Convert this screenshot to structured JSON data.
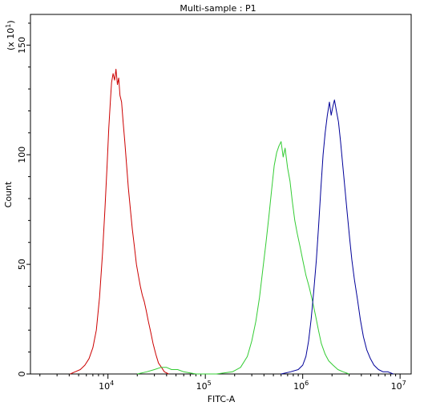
{
  "chart_data": {
    "type": "line",
    "title": "Multi-sample : P1",
    "xlabel": "FITC-A",
    "ylabel": "Count",
    "y_multiplier_label": "(x 10",
    "y_multiplier_exp": "1",
    "y_multiplier_close": ")",
    "x_scale": "log",
    "xlim": [
      1600,
      13000000
    ],
    "ylim": [
      0,
      164
    ],
    "x_major_ticks": [
      {
        "value": 10000,
        "base": "10",
        "exp": "4"
      },
      {
        "value": 100000,
        "base": "10",
        "exp": "5"
      },
      {
        "value": 1000000,
        "base": "10",
        "exp": "6"
      },
      {
        "value": 10000000,
        "base": "10",
        "exp": "7"
      }
    ],
    "y_ticks": [
      {
        "value": 0,
        "label": "0"
      },
      {
        "value": 50,
        "label": "50"
      },
      {
        "value": 100,
        "label": "100"
      },
      {
        "value": 150,
        "label": "150"
      }
    ],
    "grid": false,
    "series": [
      {
        "color": "#cc0000",
        "points": [
          [
            4100,
            0
          ],
          [
            4600,
            1
          ],
          [
            5200,
            2
          ],
          [
            5800,
            4
          ],
          [
            6400,
            7
          ],
          [
            7000,
            12
          ],
          [
            7600,
            20
          ],
          [
            8200,
            35
          ],
          [
            8800,
            55
          ],
          [
            9300,
            75
          ],
          [
            9800,
            95
          ],
          [
            10200,
            112
          ],
          [
            10600,
            125
          ],
          [
            10900,
            133
          ],
          [
            11300,
            137
          ],
          [
            11700,
            134
          ],
          [
            12100,
            139
          ],
          [
            12500,
            132
          ],
          [
            12900,
            135
          ],
          [
            13300,
            127
          ],
          [
            13800,
            124
          ],
          [
            14300,
            115
          ],
          [
            14900,
            106
          ],
          [
            15500,
            96
          ],
          [
            16200,
            85
          ],
          [
            17000,
            75
          ],
          [
            17800,
            66
          ],
          [
            18700,
            58
          ],
          [
            19600,
            50
          ],
          [
            20500,
            45
          ],
          [
            21500,
            40
          ],
          [
            22500,
            36
          ],
          [
            23600,
            33
          ],
          [
            24700,
            29
          ],
          [
            26000,
            24
          ],
          [
            27500,
            19
          ],
          [
            29000,
            14
          ],
          [
            31000,
            9
          ],
          [
            33000,
            5
          ],
          [
            35500,
            3
          ],
          [
            38000,
            1
          ],
          [
            42000,
            0
          ]
        ]
      },
      {
        "color": "#33cc33",
        "points": [
          [
            20000,
            0
          ],
          [
            25000,
            1
          ],
          [
            30000,
            2
          ],
          [
            35000,
            3
          ],
          [
            40000,
            3
          ],
          [
            45000,
            2
          ],
          [
            52000,
            2
          ],
          [
            60000,
            1
          ],
          [
            80000,
            0
          ],
          [
            130000,
            0
          ],
          [
            190000,
            1
          ],
          [
            230000,
            3
          ],
          [
            270000,
            8
          ],
          [
            300000,
            15
          ],
          [
            330000,
            24
          ],
          [
            360000,
            35
          ],
          [
            390000,
            48
          ],
          [
            420000,
            60
          ],
          [
            450000,
            72
          ],
          [
            480000,
            84
          ],
          [
            510000,
            95
          ],
          [
            540000,
            101
          ],
          [
            570000,
            104
          ],
          [
            600000,
            106
          ],
          [
            630000,
            99
          ],
          [
            660000,
            103
          ],
          [
            700000,
            94
          ],
          [
            740000,
            88
          ],
          [
            780000,
            79
          ],
          [
            830000,
            70
          ],
          [
            880000,
            64
          ],
          [
            940000,
            58
          ],
          [
            1000000,
            52
          ],
          [
            1080000,
            45
          ],
          [
            1160000,
            40
          ],
          [
            1250000,
            34
          ],
          [
            1350000,
            27
          ],
          [
            1450000,
            20
          ],
          [
            1550000,
            14
          ],
          [
            1700000,
            9
          ],
          [
            1850000,
            6
          ],
          [
            2050000,
            4
          ],
          [
            2300000,
            2
          ],
          [
            2600000,
            1
          ],
          [
            3000000,
            0
          ]
        ]
      },
      {
        "color": "#000099",
        "points": [
          [
            600000,
            0
          ],
          [
            750000,
            1
          ],
          [
            900000,
            2
          ],
          [
            1000000,
            4
          ],
          [
            1080000,
            8
          ],
          [
            1150000,
            15
          ],
          [
            1220000,
            25
          ],
          [
            1300000,
            38
          ],
          [
            1380000,
            52
          ],
          [
            1460000,
            68
          ],
          [
            1540000,
            85
          ],
          [
            1620000,
            100
          ],
          [
            1700000,
            110
          ],
          [
            1790000,
            118
          ],
          [
            1880000,
            124
          ],
          [
            1960000,
            118
          ],
          [
            2040000,
            122
          ],
          [
            2120000,
            125
          ],
          [
            2220000,
            120
          ],
          [
            2330000,
            115
          ],
          [
            2450000,
            106
          ],
          [
            2580000,
            95
          ],
          [
            2720000,
            84
          ],
          [
            2870000,
            73
          ],
          [
            3030000,
            62
          ],
          [
            3200000,
            52
          ],
          [
            3400000,
            43
          ],
          [
            3650000,
            34
          ],
          [
            3900000,
            25
          ],
          [
            4200000,
            17
          ],
          [
            4550000,
            11
          ],
          [
            4950000,
            7
          ],
          [
            5400000,
            4
          ],
          [
            6000000,
            2
          ],
          [
            6700000,
            1
          ],
          [
            7500000,
            1
          ],
          [
            8500000,
            0
          ]
        ]
      }
    ]
  }
}
